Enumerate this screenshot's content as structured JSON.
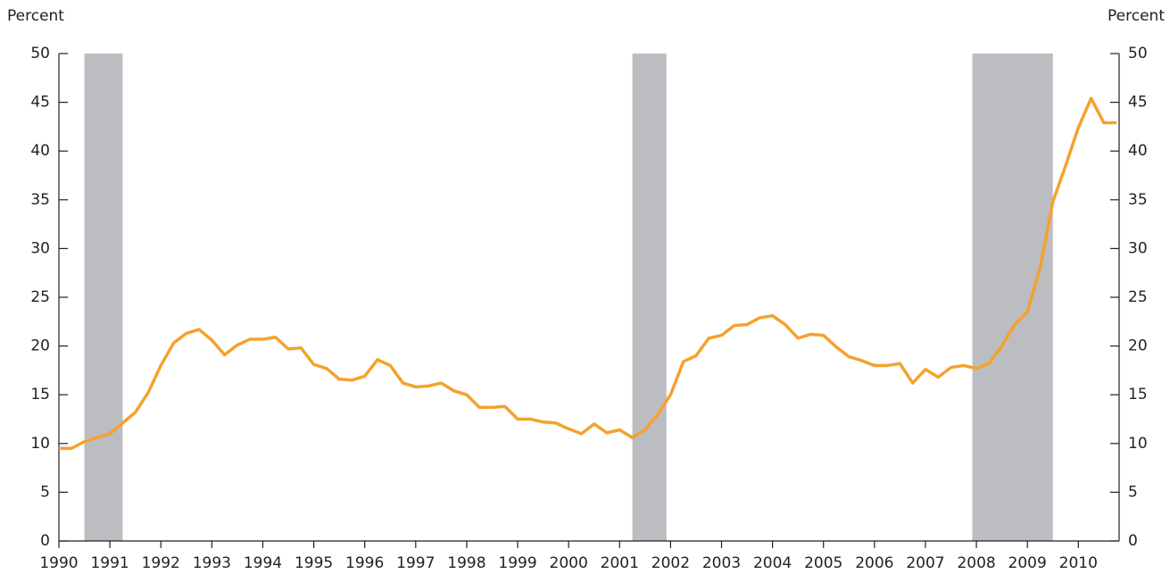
{
  "chart_data": {
    "type": "line",
    "ylabel": "Percent",
    "y2label": "Percent",
    "x": [
      1990,
      1990.25,
      1990.5,
      1990.75,
      1991,
      1991.25,
      1991.5,
      1991.75,
      1992,
      1992.25,
      1992.5,
      1992.75,
      1993,
      1993.25,
      1993.5,
      1993.75,
      1994,
      1994.25,
      1994.5,
      1994.75,
      1995,
      1995.25,
      1995.5,
      1995.75,
      1996,
      1996.25,
      1996.5,
      1996.75,
      1997,
      1997.25,
      1997.5,
      1997.75,
      1998,
      1998.25,
      1998.5,
      1998.75,
      1999,
      1999.25,
      1999.5,
      1999.75,
      2000,
      2000.25,
      2000.5,
      2000.75,
      2001,
      2001.25,
      2001.5,
      2001.75,
      2002,
      2002.25,
      2002.5,
      2002.75,
      2003,
      2003.25,
      2003.5,
      2003.75,
      2004,
      2004.25,
      2004.5,
      2004.75,
      2005,
      2005.25,
      2005.5,
      2005.75,
      2006,
      2006.25,
      2006.5,
      2006.75,
      2007,
      2007.25,
      2007.5,
      2007.75,
      2008,
      2008.25,
      2008.5,
      2008.75,
      2009,
      2009.25,
      2009.5,
      2009.75,
      2010,
      2010.25,
      2010.5,
      2010.75
    ],
    "series": [
      {
        "color": "#f4a22d",
        "values": [
          9.5,
          9.5,
          10.2,
          10.6,
          11.0,
          12.1,
          13.2,
          15.2,
          18.0,
          20.3,
          21.3,
          21.7,
          20.6,
          19.1,
          20.1,
          20.7,
          20.7,
          20.9,
          19.7,
          19.8,
          18.1,
          17.7,
          16.6,
          16.5,
          16.9,
          18.6,
          18.0,
          16.2,
          15.8,
          15.9,
          16.2,
          15.4,
          15.0,
          13.7,
          13.7,
          13.8,
          12.5,
          12.5,
          12.2,
          12.1,
          11.5,
          11.0,
          12.0,
          11.1,
          11.4,
          10.6,
          11.4,
          13.0,
          15.0,
          18.4,
          19.0,
          20.8,
          21.1,
          22.1,
          22.2,
          22.9,
          23.1,
          22.2,
          20.8,
          21.2,
          21.1,
          19.9,
          18.9,
          18.5,
          18.0,
          18.0,
          18.2,
          16.2,
          17.6,
          16.8,
          17.8,
          18.0,
          17.7,
          18.2,
          20.0,
          22.2,
          23.5,
          28.0,
          34.8,
          38.5,
          42.4,
          45.4,
          42.9,
          42.9
        ]
      }
    ],
    "shaded_periods": [
      [
        1990.5,
        1991.25
      ],
      [
        2001.25,
        2001.92
      ],
      [
        2007.92,
        2009.5
      ]
    ],
    "shade_color": "#bcbdc0",
    "xlim": [
      1990,
      2010.8
    ],
    "xticks": [
      1990,
      1991,
      1992,
      1993,
      1994,
      1995,
      1996,
      1997,
      1998,
      1999,
      2000,
      2001,
      2002,
      2003,
      2004,
      2005,
      2006,
      2007,
      2008,
      2009,
      2010
    ],
    "ylim": [
      0,
      50
    ],
    "yticks": [
      0,
      5,
      10,
      15,
      20,
      25,
      30,
      35,
      40,
      45,
      50
    ],
    "y2lim": [
      0,
      50
    ],
    "y2ticks": [
      0,
      5,
      10,
      15,
      20,
      25,
      30,
      35,
      40,
      45,
      50
    ]
  }
}
